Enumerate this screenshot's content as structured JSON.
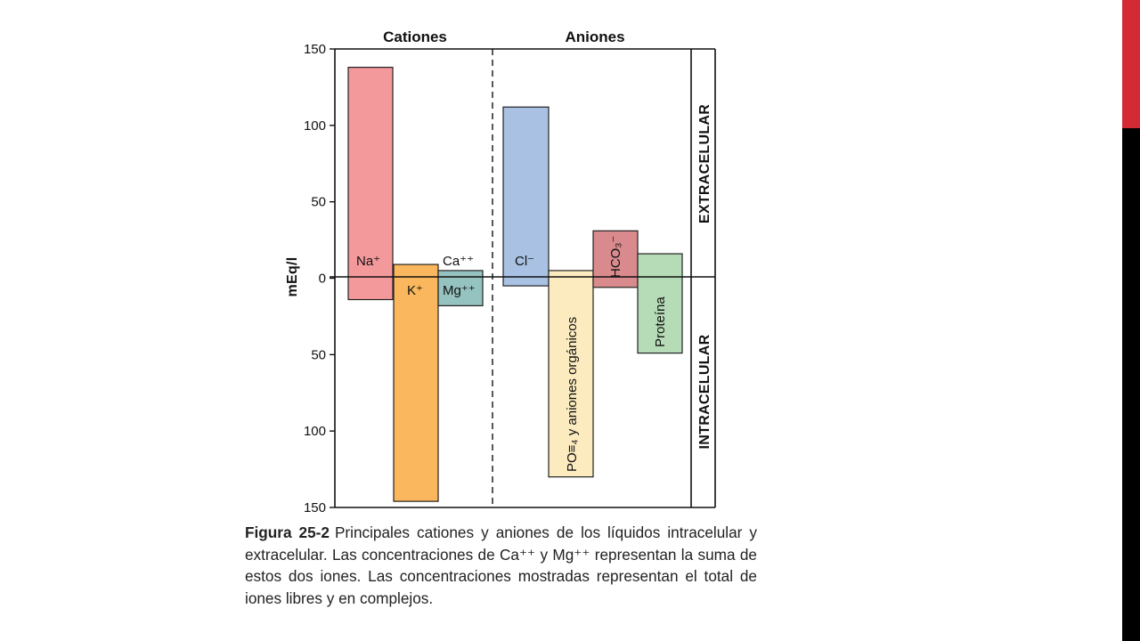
{
  "caption": {
    "label": "Figura 25-2",
    "text": "Principales cationes y aniones de los líquidos intracelular y extracelular. Las concentraciones de Ca⁺⁺ y Mg⁺⁺ representan la suma de estos dos iones. Las concentraciones mostradas representan el total de iones libres y en complejos."
  },
  "colors": {
    "accent_red": "#d42a35",
    "accent_black": "#000000"
  },
  "chart_data": {
    "type": "bar",
    "ylabel": "mEq/l",
    "ylim": [
      -150,
      150
    ],
    "y_ticks": [
      {
        "value": 150,
        "label": "150"
      },
      {
        "value": 100,
        "label": "100"
      },
      {
        "value": 50,
        "label": "50"
      },
      {
        "value": 0,
        "label": "0"
      },
      {
        "value": -50,
        "label": "50"
      },
      {
        "value": -100,
        "label": "100"
      },
      {
        "value": -150,
        "label": "150"
      }
    ],
    "groups": [
      {
        "key": "cationes",
        "label": "Cationes"
      },
      {
        "key": "aniones",
        "label": "Aniones"
      }
    ],
    "compartments": {
      "upper": "EXTRACELULAR",
      "lower": "INTRACELULAR"
    },
    "bars": [
      {
        "label": "Na⁺",
        "group": "cationes",
        "extracelular": 138,
        "intracelular": 14,
        "color": "#f4999b"
      },
      {
        "label": "K⁺",
        "group": "cationes",
        "extracelular": 9,
        "intracelular": 146,
        "color": "#fbb75d"
      },
      {
        "label": "Ca⁺⁺",
        "label_lower": "Mg⁺⁺",
        "group": "cationes",
        "extracelular": 5,
        "intracelular": 18,
        "color": "#95c3bf"
      },
      {
        "label": "Cl⁻",
        "group": "aniones",
        "extracelular": 112,
        "intracelular": 5,
        "color": "#a9c1e2"
      },
      {
        "label": "PO≡₄ y aniones orgánicos",
        "group": "aniones",
        "extracelular": 5,
        "intracelular": 130,
        "color": "#fcebbf"
      },
      {
        "label": "HCO₃⁻",
        "group": "aniones",
        "extracelular": 31,
        "intracelular": 6,
        "color": "#d98a8d"
      },
      {
        "label": "Proteína",
        "group": "aniones",
        "extracelular": 16,
        "intracelular": 49,
        "color": "#b5dcb6"
      }
    ]
  }
}
